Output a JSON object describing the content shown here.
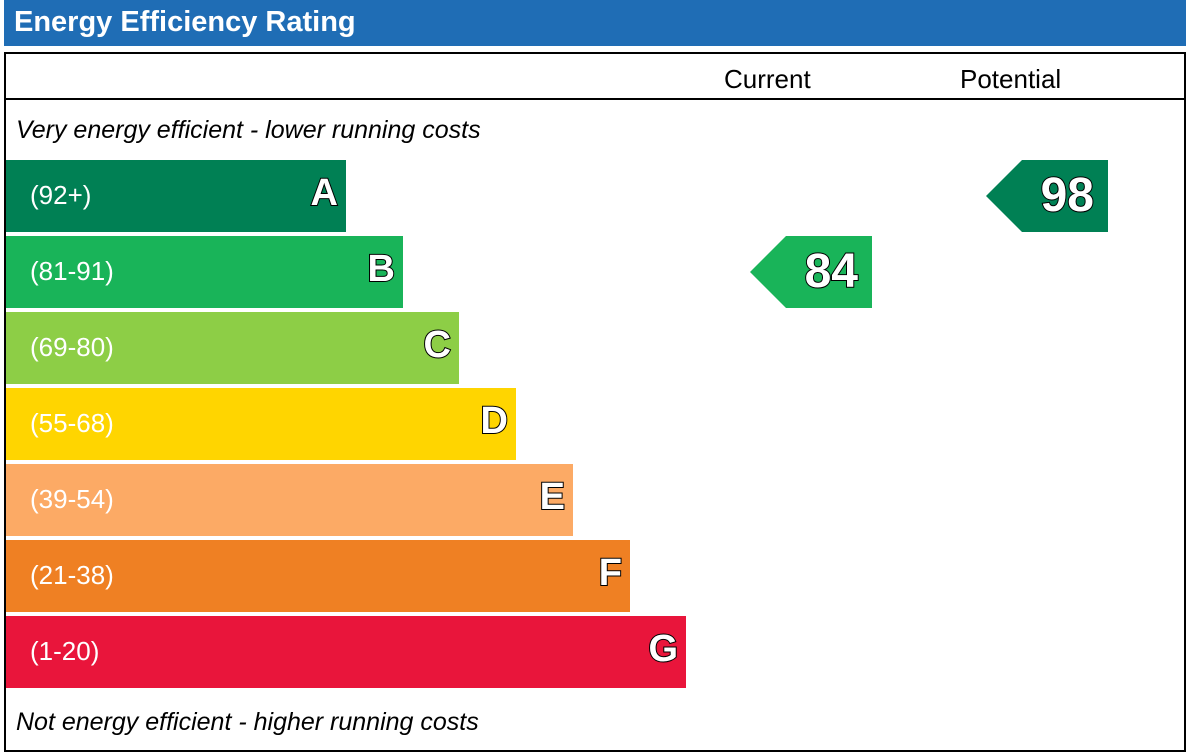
{
  "title": "Energy Efficiency Rating",
  "columns": {
    "current": "Current",
    "potential": "Potential"
  },
  "notes": {
    "top": "Very energy efficient - lower running costs",
    "bottom": "Not energy efficient - higher running costs"
  },
  "chart_data": {
    "type": "bar",
    "categories": [
      "A",
      "B",
      "C",
      "D",
      "E",
      "F",
      "G"
    ],
    "bands": [
      {
        "letter": "A",
        "range": "(92+)",
        "color": "#008054"
      },
      {
        "letter": "B",
        "range": "(81-91)",
        "color": "#19b459"
      },
      {
        "letter": "C",
        "range": "(69-80)",
        "color": "#8dce46"
      },
      {
        "letter": "D",
        "range": "(55-68)",
        "color": "#ffd500"
      },
      {
        "letter": "E",
        "range": "(39-54)",
        "color": "#fcaa65"
      },
      {
        "letter": "F",
        "range": "(21-38)",
        "color": "#ef8023"
      },
      {
        "letter": "G",
        "range": "(1-20)",
        "color": "#e9153b"
      }
    ],
    "current": {
      "value": "84",
      "band": "B",
      "color": "#19b459"
    },
    "potential": {
      "value": "98",
      "band": "A",
      "color": "#008054"
    }
  }
}
